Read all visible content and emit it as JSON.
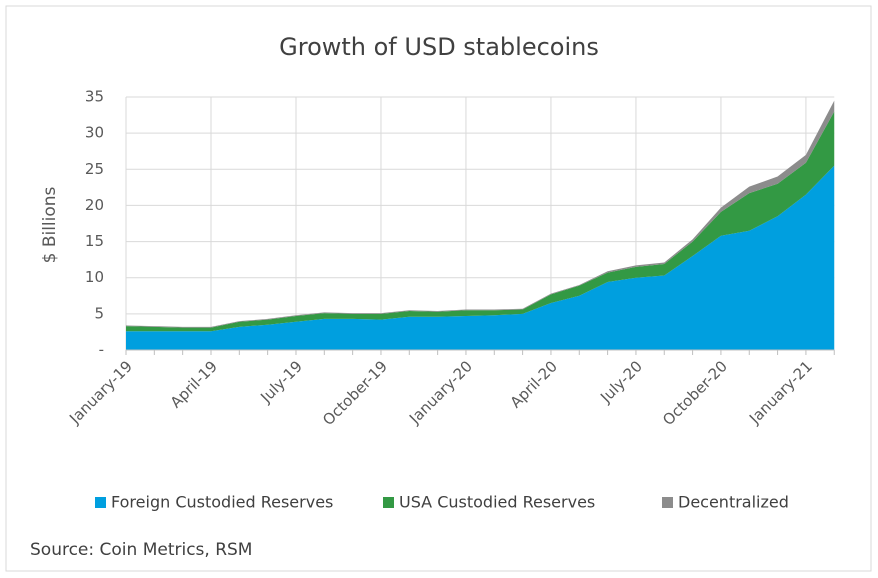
{
  "chart_data": {
    "type": "stacked_area",
    "title": "Growth of USD stablecoins",
    "y_label": "$ Billions",
    "source": "Source: Coin Metrics, RSM",
    "categories": [
      "January-19",
      null,
      null,
      "April-19",
      null,
      null,
      "July-19",
      null,
      null,
      "October-19",
      null,
      null,
      "January-20",
      null,
      null,
      "April-20",
      null,
      null,
      "July-20",
      null,
      null,
      "October-20",
      null,
      null,
      "January-21",
      null
    ],
    "series": [
      {
        "name": "Foreign Custodied Reserves",
        "color": "#009fdf",
        "values": [
          2.6,
          2.6,
          2.6,
          2.6,
          3.2,
          3.5,
          3.9,
          4.3,
          4.3,
          4.2,
          4.6,
          4.6,
          4.7,
          4.8,
          5.0,
          6.5,
          7.5,
          9.4,
          10.0,
          10.3,
          13.0,
          15.8,
          16.5,
          18.5,
          21.5,
          25.5
        ]
      },
      {
        "name": "USA Custodied Reserves",
        "color": "#339944",
        "values": [
          0.7,
          0.6,
          0.5,
          0.5,
          0.7,
          0.7,
          0.8,
          0.8,
          0.7,
          0.8,
          0.8,
          0.7,
          0.8,
          0.7,
          0.6,
          1.2,
          1.4,
          1.3,
          1.5,
          1.6,
          2.0,
          3.3,
          5.2,
          4.5,
          4.4,
          7.5
        ]
      },
      {
        "name": "Decentralized",
        "color": "#8c8c8c",
        "values": [
          0.1,
          0.1,
          0.1,
          0.1,
          0.1,
          0.1,
          0.1,
          0.1,
          0.1,
          0.1,
          0.1,
          0.1,
          0.1,
          0.1,
          0.1,
          0.1,
          0.1,
          0.2,
          0.2,
          0.2,
          0.3,
          0.6,
          0.9,
          1.0,
          1.1,
          1.5
        ]
      }
    ],
    "ylim": [
      0,
      35
    ],
    "yticks": [
      {
        "value": 0,
        "label": "-"
      },
      5,
      10,
      15,
      20,
      25,
      30,
      35
    ],
    "grid": true
  }
}
